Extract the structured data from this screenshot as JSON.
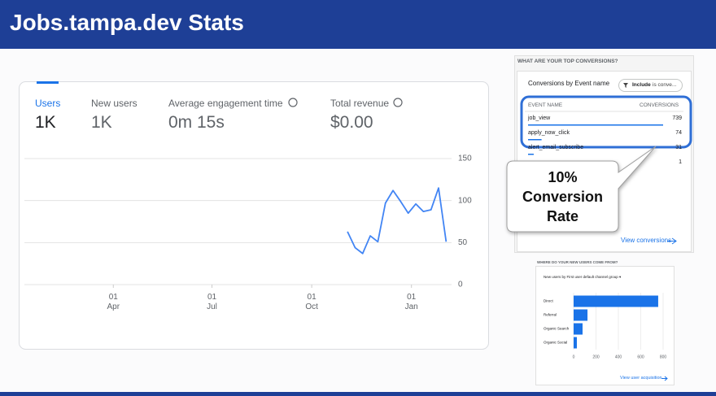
{
  "header": {
    "title": "Jobs.tampa.dev Stats"
  },
  "kpis": [
    {
      "label": "Users",
      "value": "1K"
    },
    {
      "label": "New users",
      "value": "1K"
    },
    {
      "label": "Average engagement time",
      "value": "0m 15s"
    },
    {
      "label": "Total revenue",
      "value": "$0.00"
    }
  ],
  "conversions": {
    "section_title": "WHAT ARE YOUR TOP CONVERSIONS?",
    "card_title": "Conversions by Event name",
    "filter_bold": "Include",
    "filter_rest": "is conve...",
    "columns": [
      "EVENT NAME",
      "CONVERSIONS"
    ],
    "rows": [
      {
        "name": "job_view",
        "value": 739
      },
      {
        "name": "apply_now_click",
        "value": 74
      },
      {
        "name": "alert_email_subscribe",
        "value": 31
      },
      {
        "value": 1
      }
    ],
    "bar_color": "#1a73e8",
    "link": "View conversions"
  },
  "callout": "10%\nConversion\nRate",
  "chart_data": [
    {
      "type": "line",
      "color": "#4285f4",
      "x": [
        306,
        313,
        320,
        327,
        334,
        341,
        348,
        355,
        362,
        369,
        376,
        383,
        390,
        397
      ],
      "values": [
        63,
        44,
        37,
        58,
        51,
        97,
        112,
        99,
        85,
        96,
        87,
        89,
        115,
        51
      ],
      "xlim": [
        8,
        402
      ],
      "xticks": [
        {
          "value": 90,
          "label": "01\nApr"
        },
        {
          "value": 181,
          "label": "01\nJul"
        },
        {
          "value": 273,
          "label": "01\nOct"
        },
        {
          "value": 365,
          "label": "01\nJan"
        }
      ],
      "ylim": [
        0,
        150
      ],
      "yticks": [
        0,
        50,
        100,
        150
      ],
      "grid": true
    },
    {
      "type": "bar",
      "orientation": "horizontal",
      "title": "WHERE DO YOUR NEW USERS COME FROM?",
      "subtitle": "New users by First user default channel group ▾",
      "categories": [
        "Direct",
        "Referral",
        "Organic Search",
        "Organic Social"
      ],
      "values": [
        756,
        124,
        80,
        29
      ],
      "color": "#1a73e8",
      "xlim": [
        0,
        800
      ],
      "xticks": [
        0,
        200,
        400,
        600,
        800
      ],
      "link": "View user acquisition"
    }
  ]
}
